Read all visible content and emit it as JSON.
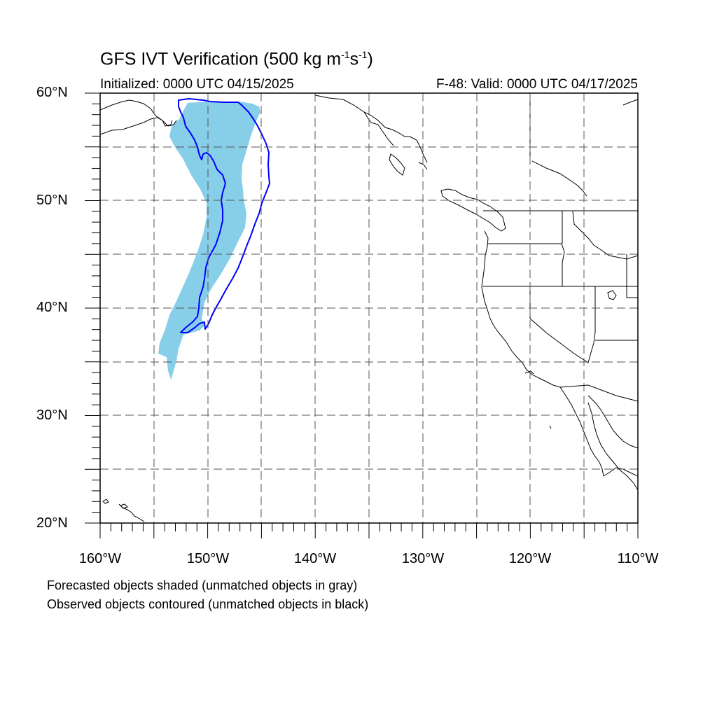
{
  "title": {
    "main": "GFS IVT Verification (500 kg m",
    "exp1": "-1",
    "mid": "s",
    "exp2": "-1",
    "close": ")"
  },
  "initialized": "Initialized: 0000 UTC 04/15/2025",
  "valid": "F-48: Valid: 0000 UTC 04/17/2025",
  "lat_labels": [
    "60°N",
    "50°N",
    "40°N",
    "30°N",
    "20°N"
  ],
  "lon_labels": [
    "160°W",
    "150°W",
    "140°W",
    "130°W",
    "120°W",
    "110°W"
  ],
  "notes": [
    "Forecasted objects shaded (unmatched objects in gray)",
    "Observed objects contoured (unmatched objects in black)"
  ],
  "colors": {
    "forecast_fill": "#87CEE8",
    "observed_contour": "#0000FF",
    "grid": "#555555",
    "coast": "#000000"
  },
  "map": {
    "lon_range": [
      -160,
      -110
    ],
    "lat_range": [
      20,
      60
    ],
    "projection": "cylindrical equidistant",
    "grid": "dashed every 5 degrees"
  }
}
